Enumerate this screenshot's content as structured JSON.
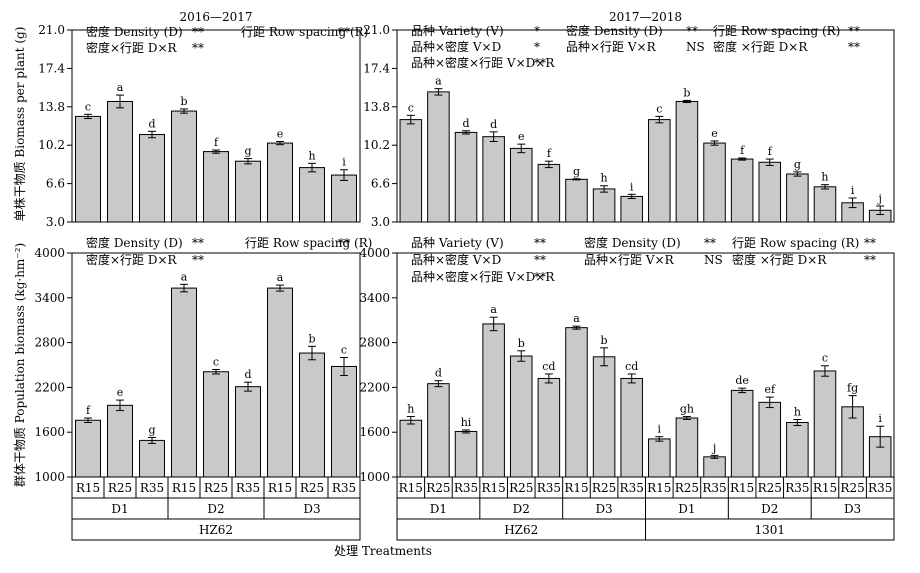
{
  "figure": {
    "x_title": "处理 Treatments",
    "row_labels": {
      "top": "单株干物质 Biomass per plant (g)",
      "bottom": "群体干物质 Population biomass (kg·hm⁻²)"
    }
  },
  "chart_data": [
    {
      "id": "a",
      "type": "bar",
      "title": "2016—2017",
      "ylabel": "单株干物质 Biomass per plant (g)",
      "ylim": [
        3.0,
        21.0
      ],
      "yticks": [
        "3.0",
        "6.6",
        "10.2",
        "13.8",
        "17.4",
        "21.0"
      ],
      "categories": [
        "R15",
        "R25",
        "R35",
        "R15",
        "R25",
        "R35",
        "R15",
        "R25",
        "R35"
      ],
      "values": [
        12.9,
        14.3,
        11.2,
        13.4,
        9.6,
        8.7,
        10.4,
        8.1,
        7.4
      ],
      "errors": [
        0.2,
        0.6,
        0.3,
        0.2,
        0.15,
        0.25,
        0.15,
        0.4,
        0.5
      ],
      "letters": [
        "c",
        "a",
        "d",
        "b",
        "f",
        "g",
        "e",
        "h",
        "i"
      ],
      "density_groups": [
        "D1",
        "D2",
        "D3"
      ],
      "variety_groups": [
        "HZ62"
      ],
      "annotations": [
        [
          "密度 Density (D)",
          "**",
          "行距 Row spacing (R)",
          "**"
        ],
        [
          "密度×行距 D×R",
          "**"
        ]
      ]
    },
    {
      "id": "b",
      "type": "bar",
      "title": "2017—2018",
      "ylabel": "",
      "ylim": [
        3.0,
        21.0
      ],
      "yticks": [
        "3.0",
        "6.6",
        "10.2",
        "13.8",
        "17.4",
        "21.0"
      ],
      "categories": [
        "R15",
        "R25",
        "R35",
        "R15",
        "R25",
        "R35",
        "R15",
        "R25",
        "R35",
        "R15",
        "R25",
        "R35",
        "R15",
        "R25",
        "R35",
        "R15",
        "R25",
        "R35"
      ],
      "values": [
        12.6,
        15.2,
        11.4,
        11.0,
        9.9,
        8.4,
        7.0,
        6.1,
        5.4,
        12.6,
        14.3,
        10.4,
        8.9,
        8.6,
        7.5,
        6.3,
        4.8,
        4.1
      ],
      "errors": [
        0.4,
        0.3,
        0.15,
        0.45,
        0.4,
        0.3,
        0.05,
        0.3,
        0.2,
        0.3,
        0.1,
        0.2,
        0.1,
        0.3,
        0.2,
        0.2,
        0.45,
        0.4
      ],
      "letters": [
        "c",
        "a",
        "d",
        "d",
        "e",
        "f",
        "g",
        "h",
        "i",
        "c",
        "b",
        "e",
        "f",
        "f",
        "g",
        "h",
        "i",
        "j"
      ],
      "density_groups": [
        "D1",
        "D2",
        "D3",
        "D1",
        "D2",
        "D3"
      ],
      "variety_groups": [
        "HZ62",
        "1301"
      ],
      "annotations": [
        [
          "品种 Variety (V)",
          "*",
          "密度 Density (D)",
          "**",
          "行距 Row spacing (R)",
          "**"
        ],
        [
          "品种×密度 V×D",
          "*",
          "品种×行距 V×R",
          "NS",
          "密度 ×行距 D×R",
          "**"
        ],
        [
          "品种×密度×行距 V×D×R",
          "**"
        ]
      ]
    },
    {
      "id": "c",
      "type": "bar",
      "title": "",
      "ylabel": "群体干物质 Population biomass (kg·hm⁻²)",
      "ylim": [
        1000,
        4000
      ],
      "yticks": [
        "1000",
        "1600",
        "2200",
        "2800",
        "3400",
        "4000"
      ],
      "categories": [
        "R15",
        "R25",
        "R35",
        "R15",
        "R25",
        "R35",
        "R15",
        "R25",
        "R35"
      ],
      "values": [
        1760,
        1960,
        1490,
        3530,
        2410,
        2210,
        3530,
        2660,
        2480
      ],
      "errors": [
        30,
        70,
        40,
        50,
        30,
        60,
        40,
        90,
        120
      ],
      "letters": [
        "f",
        "e",
        "g",
        "a",
        "c",
        "d",
        "a",
        "b",
        "c"
      ],
      "density_groups": [
        "D1",
        "D2",
        "D3"
      ],
      "variety_groups": [
        "HZ62"
      ],
      "annotations": [
        [
          "密度 Density (D)",
          "**",
          "行距 Row spacing (R)",
          "**"
        ],
        [
          "密度×行距 D×R",
          "**"
        ]
      ]
    },
    {
      "id": "d",
      "type": "bar",
      "title": "",
      "ylabel": "",
      "ylim": [
        1000,
        4000
      ],
      "yticks": [
        "1000",
        "1600",
        "2200",
        "2800",
        "3400",
        "4000"
      ],
      "categories": [
        "R15",
        "R25",
        "R35",
        "R15",
        "R25",
        "R35",
        "R15",
        "R25",
        "R35",
        "R15",
        "R25",
        "R35",
        "R15",
        "R25",
        "R35",
        "R15",
        "R25",
        "R35"
      ],
      "values": [
        1760,
        2250,
        1610,
        3050,
        2620,
        2320,
        3000,
        2610,
        2320,
        1510,
        1790,
        1270,
        2160,
        2000,
        1730,
        2420,
        1940,
        1540
      ],
      "errors": [
        50,
        40,
        20,
        90,
        70,
        60,
        20,
        120,
        60,
        30,
        20,
        20,
        30,
        70,
        40,
        70,
        150,
        140
      ],
      "letters": [
        "h",
        "d",
        "hi",
        "a",
        "b",
        "cd",
        "a",
        "b",
        "cd",
        "i",
        "gh",
        "j",
        "de",
        "ef",
        "h",
        "c",
        "fg",
        "i"
      ],
      "density_groups": [
        "D1",
        "D2",
        "D3",
        "D1",
        "D2",
        "D3"
      ],
      "variety_groups": [
        "HZ62",
        "1301"
      ],
      "annotations": [
        [
          "品种 Variety (V)",
          "**",
          "密度 Density (D)",
          "**",
          "行距 Row spacing (R)",
          "**"
        ],
        [
          "品种×密度 V×D",
          "**",
          "品种×行距 V×R",
          "NS",
          "密度 ×行距 D×R",
          "**"
        ],
        [
          "品种×密度×行距 V×D×R",
          "**"
        ]
      ]
    }
  ]
}
